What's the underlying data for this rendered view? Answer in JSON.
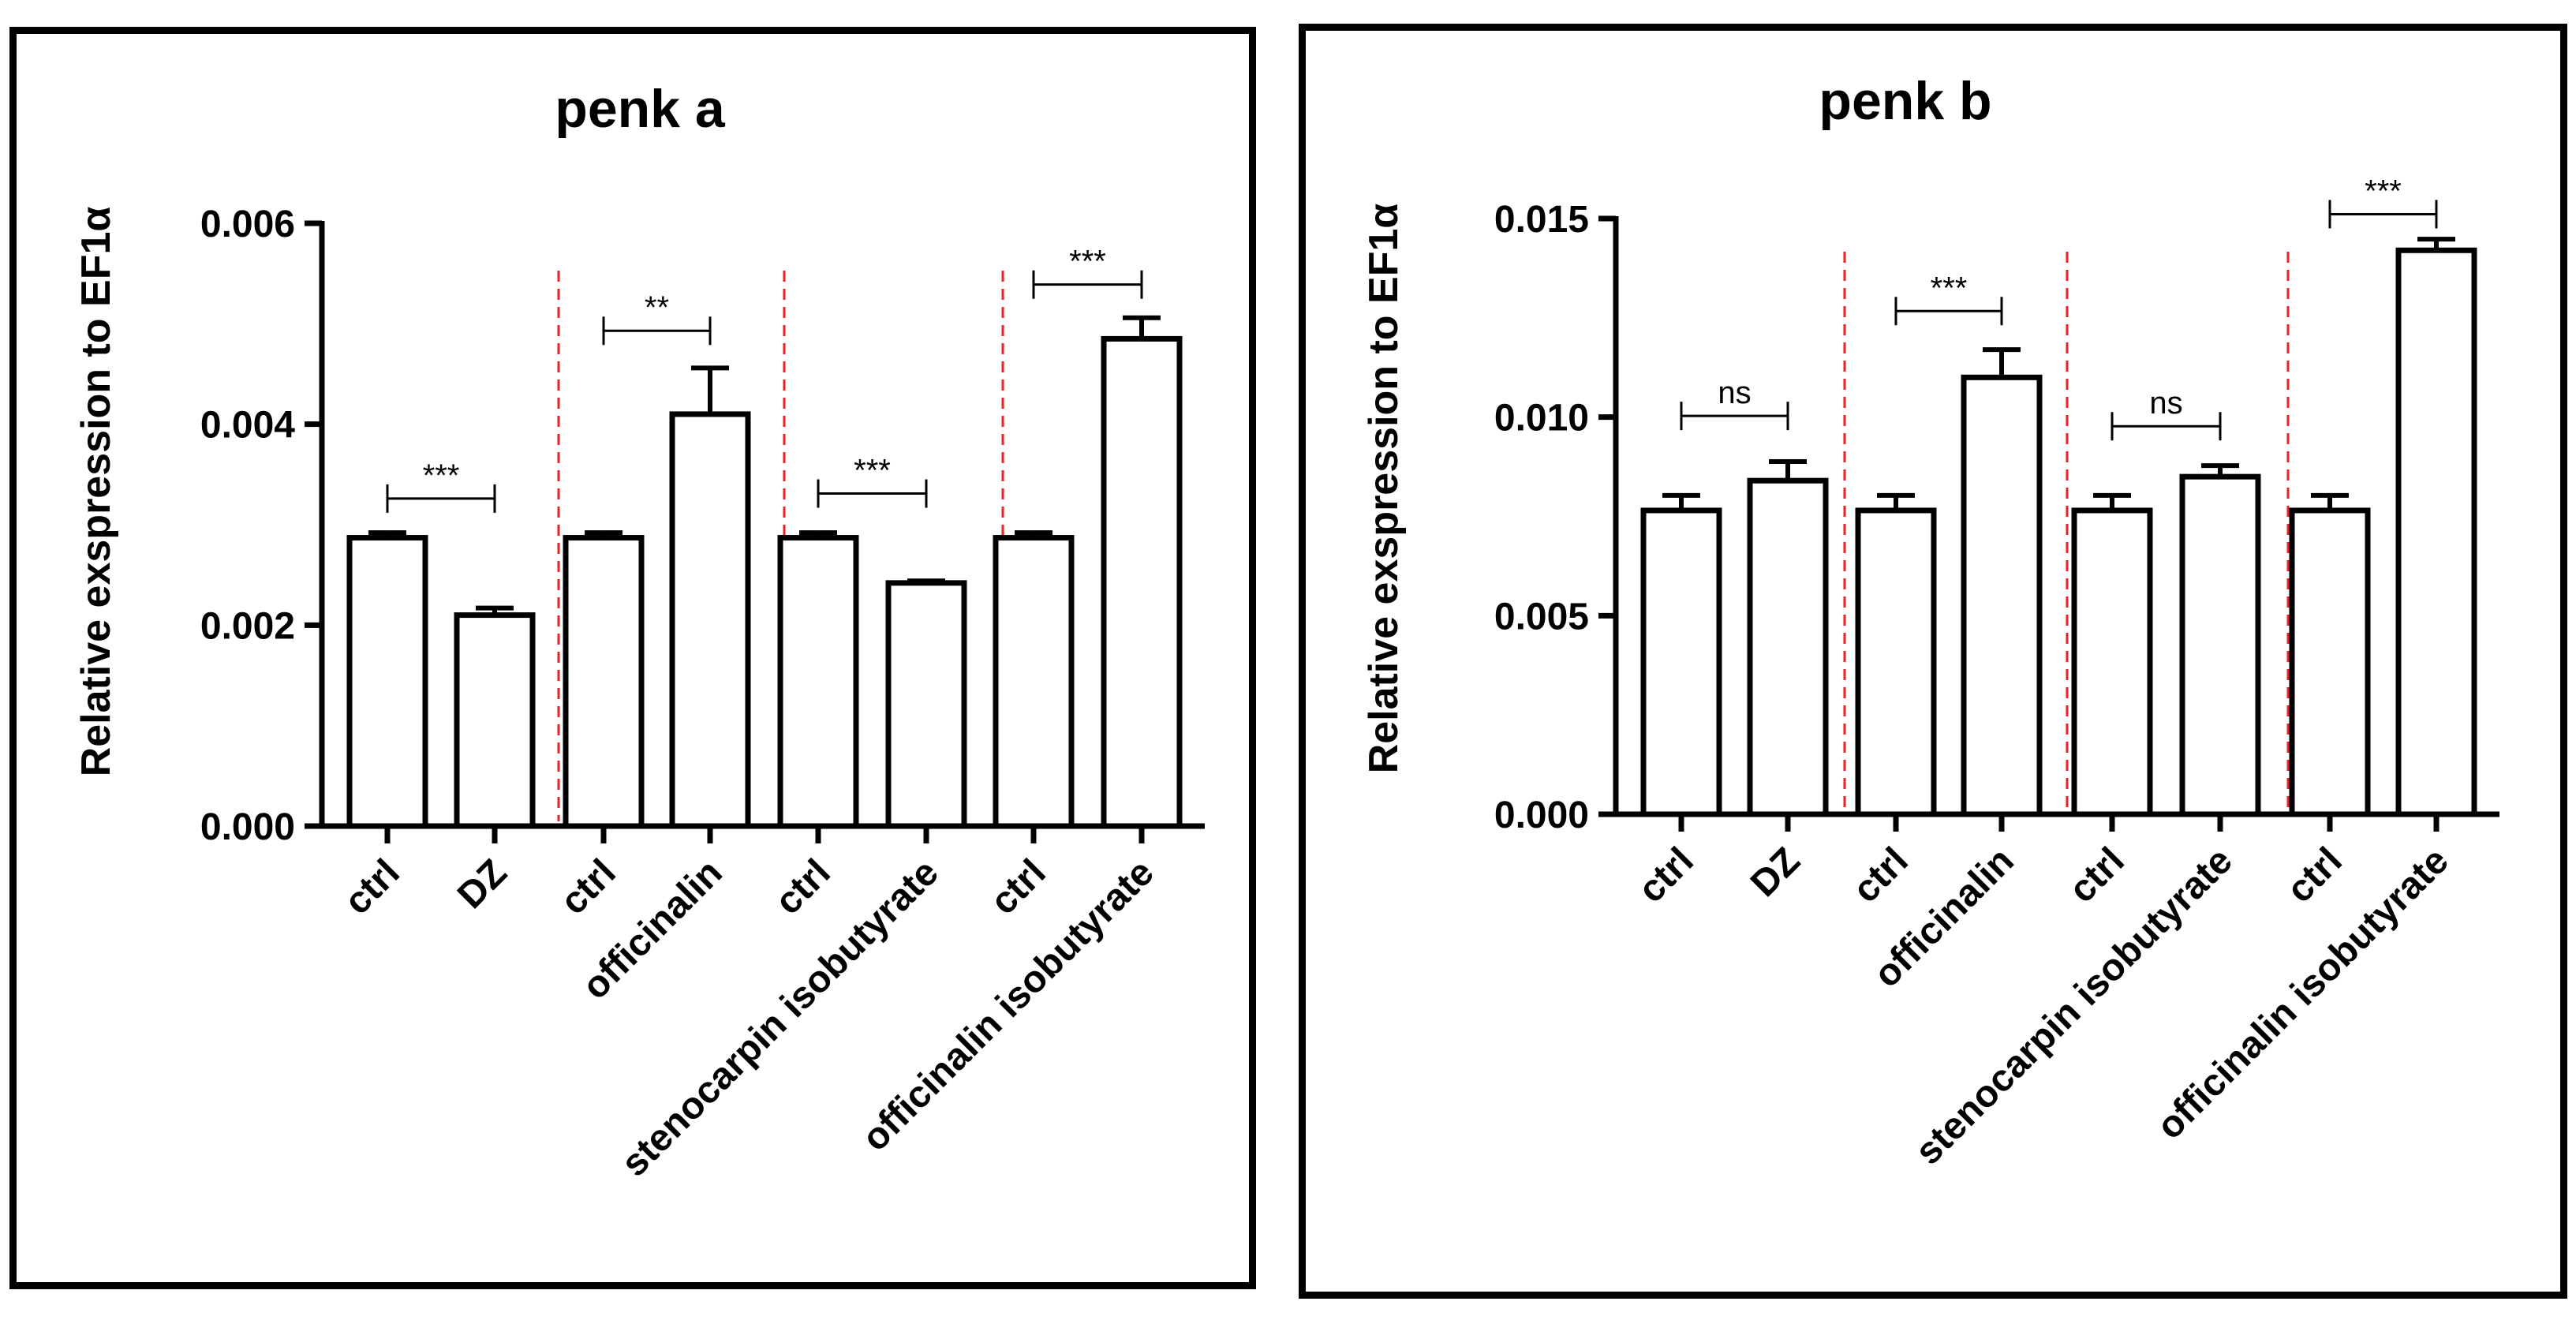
{
  "chart_data": [
    {
      "type": "bar",
      "title": "penk a",
      "ylabel": "Relative exspression to EF1α",
      "xlabel": "",
      "ylim": [
        0,
        0.006
      ],
      "yticks": [
        "0.000",
        "0.002",
        "0.004",
        "0.006"
      ],
      "categories": [
        "ctrl",
        "DZ",
        "ctrl",
        "officinalin",
        "ctrl",
        "stenocarpin isobutyrate",
        "ctrl",
        "officinalin isobutyrate"
      ],
      "values": [
        0.00287,
        0.0021,
        0.00287,
        0.0041,
        0.00287,
        0.00242,
        0.00287,
        0.00485
      ],
      "errors": [
        5e-05,
        7e-05,
        5e-05,
        0.00046,
        5e-05,
        2e-05,
        5e-05,
        0.00021
      ],
      "comparisons": [
        {
          "pair": [
            0,
            1
          ],
          "label": "***",
          "y": 0.00326
        },
        {
          "pair": [
            2,
            3
          ],
          "label": "**",
          "y": 0.00493
        },
        {
          "pair": [
            4,
            5
          ],
          "label": "***",
          "y": 0.00331
        },
        {
          "pair": [
            6,
            7
          ],
          "label": "***",
          "y": 0.00539
        }
      ],
      "group_separators": true,
      "separator_color": "#ee2222",
      "bar_fill": "#ffffff",
      "bar_stroke": "#000000"
    },
    {
      "type": "bar",
      "title": "penk b",
      "ylabel": "Relative exspression to EF1α",
      "xlabel": "",
      "ylim": [
        0,
        0.015
      ],
      "yticks": [
        "0.000",
        "0.005",
        "0.010",
        "0.015"
      ],
      "categories": [
        "ctrl",
        "DZ",
        "ctrl",
        "officinalin",
        "ctrl",
        "stenocarpin isobutyrate",
        "ctrl",
        "officinalin isobutyrate"
      ],
      "values": [
        0.00765,
        0.0084,
        0.00765,
        0.011,
        0.00765,
        0.0085,
        0.00765,
        0.0142
      ],
      "errors": [
        0.00038,
        0.00048,
        0.00038,
        0.0007,
        0.00038,
        0.00028,
        0.00038,
        0.00028
      ],
      "comparisons": [
        {
          "pair": [
            0,
            1
          ],
          "label": "ns",
          "y": 0.01003
        },
        {
          "pair": [
            2,
            3
          ],
          "label": "***",
          "y": 0.01267
        },
        {
          "pair": [
            4,
            5
          ],
          "label": "ns",
          "y": 0.00977
        },
        {
          "pair": [
            6,
            7
          ],
          "label": "***",
          "y": 0.01511
        }
      ],
      "group_separators": true,
      "separator_color": "#ee2222",
      "bar_fill": "#ffffff",
      "bar_stroke": "#000000"
    }
  ]
}
